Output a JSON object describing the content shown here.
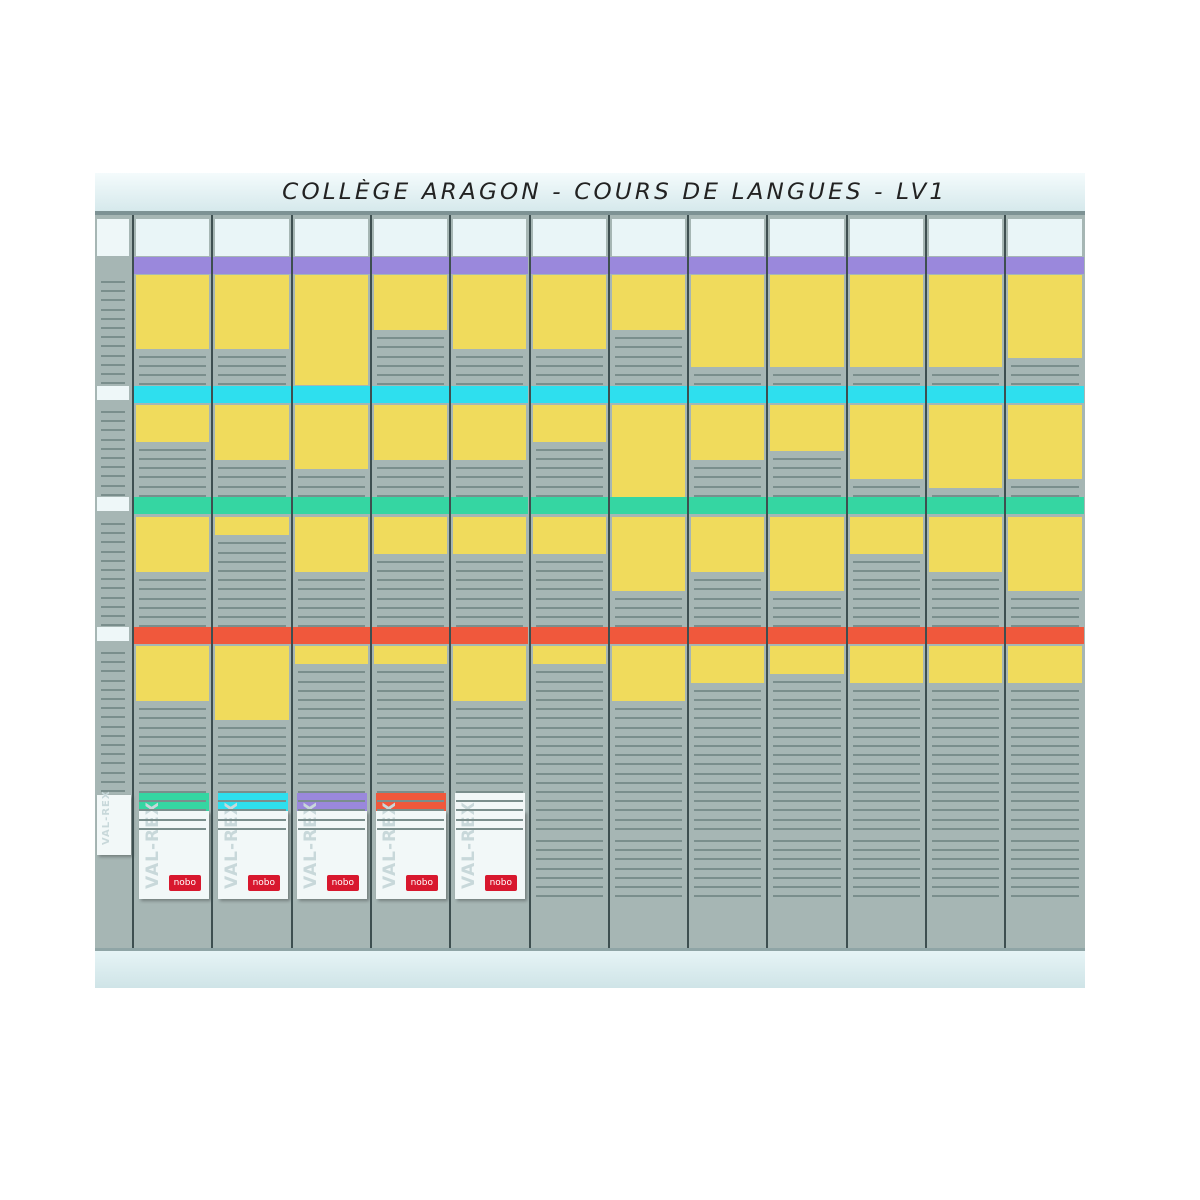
{
  "title": "COLLÈGE ARAGON - COURS DE LANGUES - LV1",
  "colors": {
    "board": "#a6b6b4",
    "card": "#f0db5c",
    "bands": [
      "#9a88dc",
      "#2edfee",
      "#35d6a2",
      "#f0583c"
    ]
  },
  "sections": [
    {
      "band_color": "#9a88dc",
      "yellow_cards": [
        8,
        8,
        12,
        6,
        8,
        8,
        6,
        10,
        10,
        10,
        10,
        9
      ]
    },
    {
      "band_color": "#2edfee",
      "yellow_cards": [
        4,
        6,
        7,
        6,
        6,
        4,
        10,
        6,
        5,
        8,
        9,
        8
      ]
    },
    {
      "band_color": "#35d6a2",
      "yellow_cards": [
        6,
        2,
        6,
        4,
        4,
        4,
        8,
        6,
        8,
        4,
        6,
        8
      ]
    },
    {
      "band_color": "#f0583c",
      "yellow_cards": [
        6,
        8,
        2,
        2,
        6,
        2,
        6,
        4,
        3,
        4,
        4,
        4
      ]
    }
  ],
  "card_boxes": [
    {
      "lid_color": "#35d6a2",
      "label": "VAL-REX",
      "brand": "nobo"
    },
    {
      "lid_color": "#2edfee",
      "label": "VAL-REX",
      "brand": "nobo"
    },
    {
      "lid_color": "#9a88dc",
      "label": "VAL-REX",
      "brand": "nobo"
    },
    {
      "lid_color": "#f0583c",
      "label": "VAL-REX",
      "brand": "nobo"
    },
    {
      "lid_color": "#f2f8f8",
      "label": "VAL-REX",
      "brand": "nobo"
    }
  ],
  "small_box": {
    "label": "VAL-REX"
  }
}
